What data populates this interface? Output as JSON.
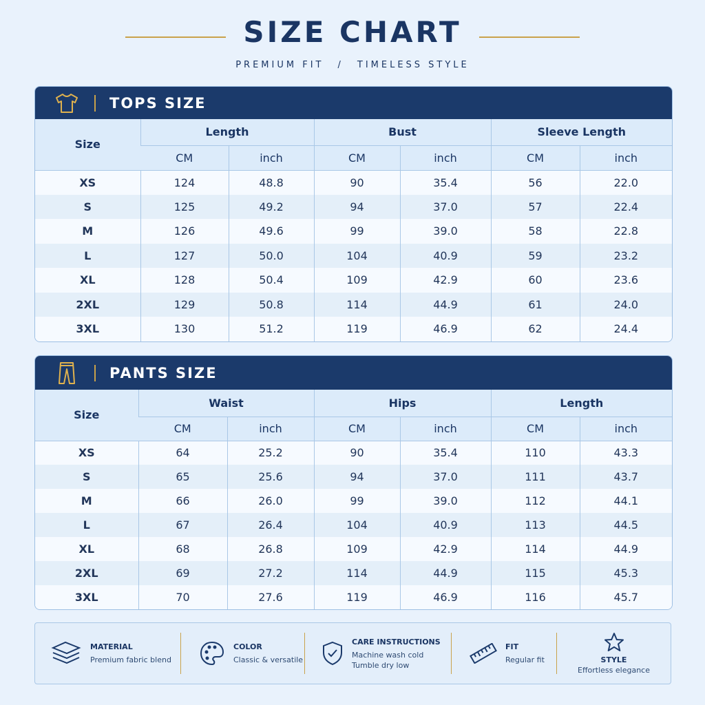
{
  "header": {
    "title": "SIZE CHART",
    "subtitle_left": "PREMIUM FIT",
    "separator": "/",
    "subtitle_right": "TIMELESS STYLE"
  },
  "tables": [
    {
      "title": "TOPS SIZE",
      "size_label": "Size",
      "groups": [
        "Length",
        "Bust",
        "Sleeve Length"
      ],
      "units": [
        "CM",
        "inch",
        "CM",
        "inch",
        "CM",
        "inch"
      ],
      "rows": [
        [
          "XS",
          "124",
          "48.8",
          "90",
          "35.4",
          "56",
          "22.0"
        ],
        [
          "S",
          "125",
          "49.2",
          "94",
          "37.0",
          "57",
          "22.4"
        ],
        [
          "M",
          "126",
          "49.6",
          "99",
          "39.0",
          "58",
          "22.8"
        ],
        [
          "L",
          "127",
          "50.0",
          "104",
          "40.9",
          "59",
          "23.2"
        ],
        [
          "XL",
          "128",
          "50.4",
          "109",
          "42.9",
          "60",
          "23.6"
        ],
        [
          "2XL",
          "129",
          "50.8",
          "114",
          "44.9",
          "61",
          "24.0"
        ],
        [
          "3XL",
          "130",
          "51.2",
          "119",
          "46.9",
          "62",
          "24.4"
        ]
      ]
    },
    {
      "title": "PANTS SIZE",
      "size_label": "Size",
      "groups": [
        "Waist",
        "Hips",
        "Length"
      ],
      "units": [
        "CM",
        "inch",
        "CM",
        "inch",
        "CM",
        "inch"
      ],
      "rows": [
        [
          "XS",
          "64",
          "25.2",
          "90",
          "35.4",
          "110",
          "43.3"
        ],
        [
          "S",
          "65",
          "25.6",
          "94",
          "37.0",
          "111",
          "43.7"
        ],
        [
          "M",
          "66",
          "26.0",
          "99",
          "39.0",
          "112",
          "44.1"
        ],
        [
          "L",
          "67",
          "26.4",
          "104",
          "40.9",
          "113",
          "44.5"
        ],
        [
          "XL",
          "68",
          "26.8",
          "109",
          "42.9",
          "114",
          "44.9"
        ],
        [
          "2XL",
          "69",
          "27.2",
          "114",
          "44.9",
          "115",
          "45.3"
        ],
        [
          "3XL",
          "70",
          "27.6",
          "119",
          "46.9",
          "116",
          "45.7"
        ]
      ]
    }
  ],
  "features": [
    {
      "title": "MATERIAL",
      "lines": [
        "Premium fabric blend"
      ]
    },
    {
      "title": "COLOR",
      "lines": [
        "Classic & versatile"
      ]
    },
    {
      "title": "CARE INSTRUCTIONS",
      "lines": [
        "Machine wash cold",
        "Tumble dry low"
      ]
    },
    {
      "title": "FIT",
      "lines": [
        "Regular fit"
      ]
    },
    {
      "title": "STYLE",
      "lines": [
        "Effortless elegance"
      ]
    }
  ]
}
